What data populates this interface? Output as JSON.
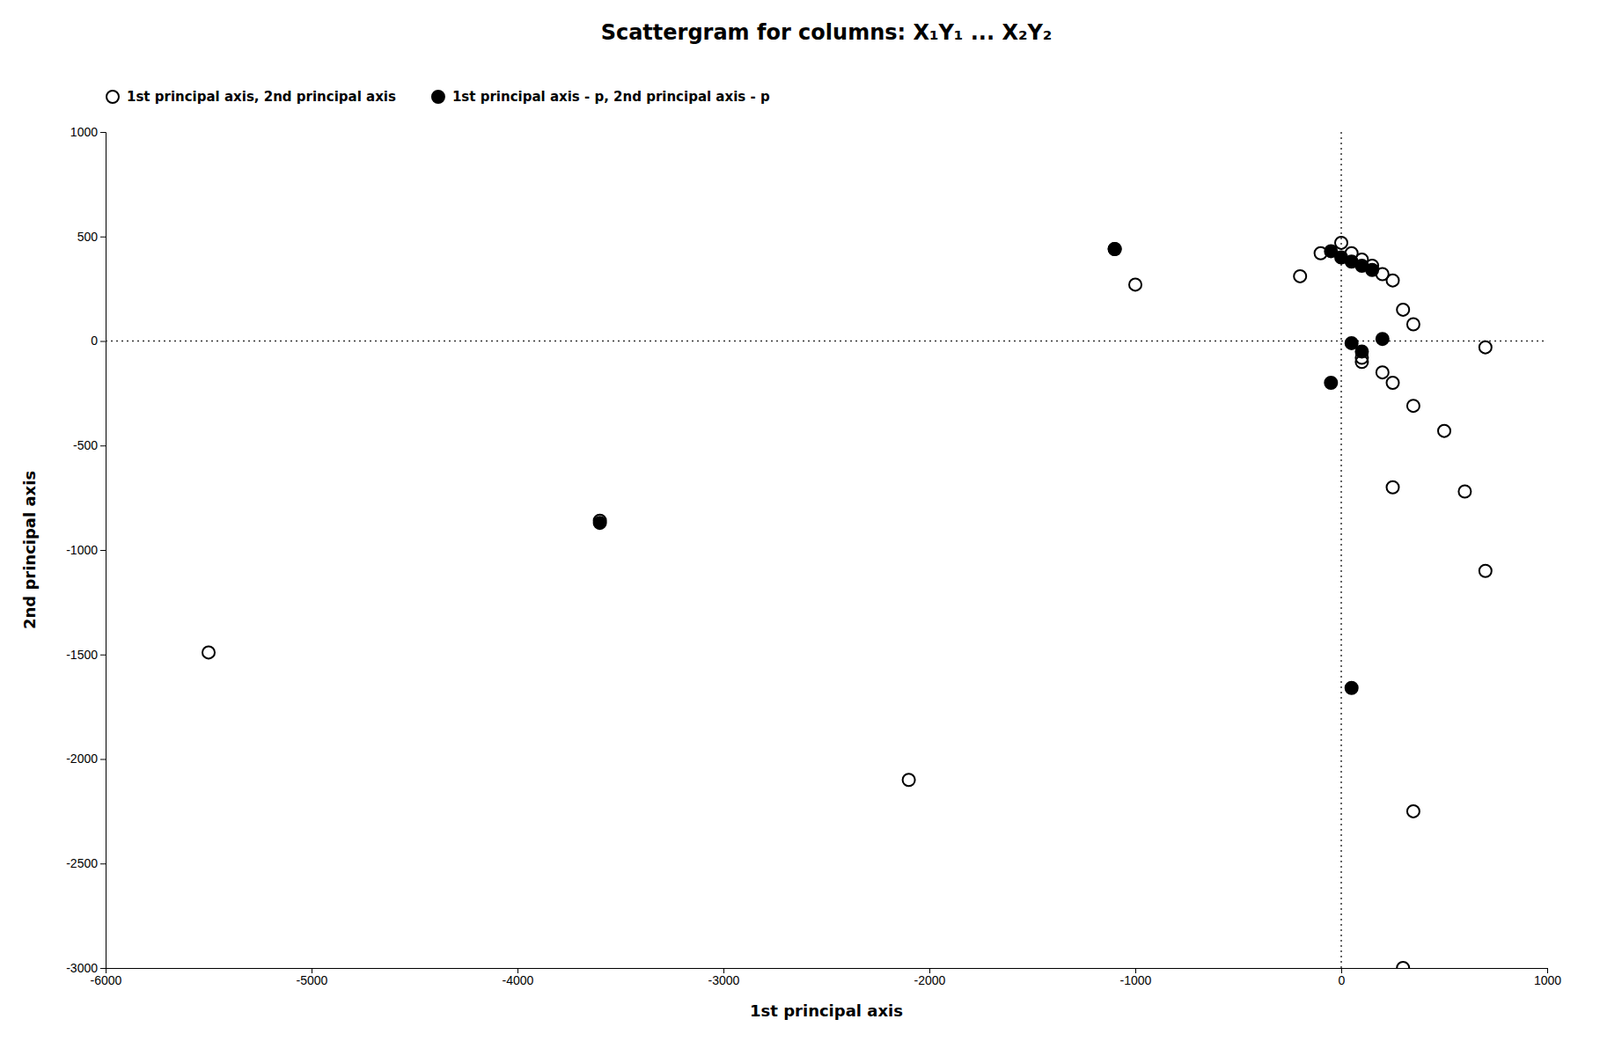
{
  "chart_data": {
    "type": "scatter",
    "title": "Scattergram for columns: X₁Y₁ ... X₂Y₂",
    "xlabel": "1st principal axis",
    "ylabel": "2nd principal axis",
    "xlim": [
      -6000,
      1000
    ],
    "ylim": [
      -3000,
      1000
    ],
    "xticks": [
      -6000,
      -5000,
      -4000,
      -3000,
      -2000,
      -1000,
      0,
      1000
    ],
    "yticks": [
      -3000,
      -2500,
      -2000,
      -1500,
      -1000,
      -500,
      0,
      500,
      1000
    ],
    "grid": false,
    "legend": "top",
    "series": [
      {
        "name": "1st principal axis, 2nd principal axis",
        "color": "#000000",
        "marker": "circle-open",
        "x": [
          -5500,
          -3600,
          -2100,
          -1100,
          -1000,
          -200,
          -100,
          0,
          50,
          100,
          150,
          200,
          250,
          300,
          350,
          100,
          200,
          250,
          350,
          500,
          600,
          700,
          100,
          250,
          350,
          700,
          300
        ],
        "values": [
          -1490,
          -860,
          -2100,
          440,
          270,
          310,
          420,
          470,
          420,
          390,
          360,
          320,
          290,
          150,
          80,
          -80,
          -150,
          -200,
          -310,
          -430,
          -720,
          -1100,
          -100,
          -700,
          -2250,
          -30,
          -3000
        ]
      },
      {
        "name": "1st principal axis - p, 2nd principal axis - p",
        "color": "#000000",
        "marker": "circle",
        "x": [
          -3600,
          -1100,
          -50,
          0,
          50,
          100,
          150,
          200,
          50,
          100,
          -50,
          50
        ],
        "values": [
          -870,
          440,
          430,
          400,
          380,
          360,
          340,
          10,
          -10,
          -50,
          -200,
          -1660
        ]
      }
    ]
  }
}
